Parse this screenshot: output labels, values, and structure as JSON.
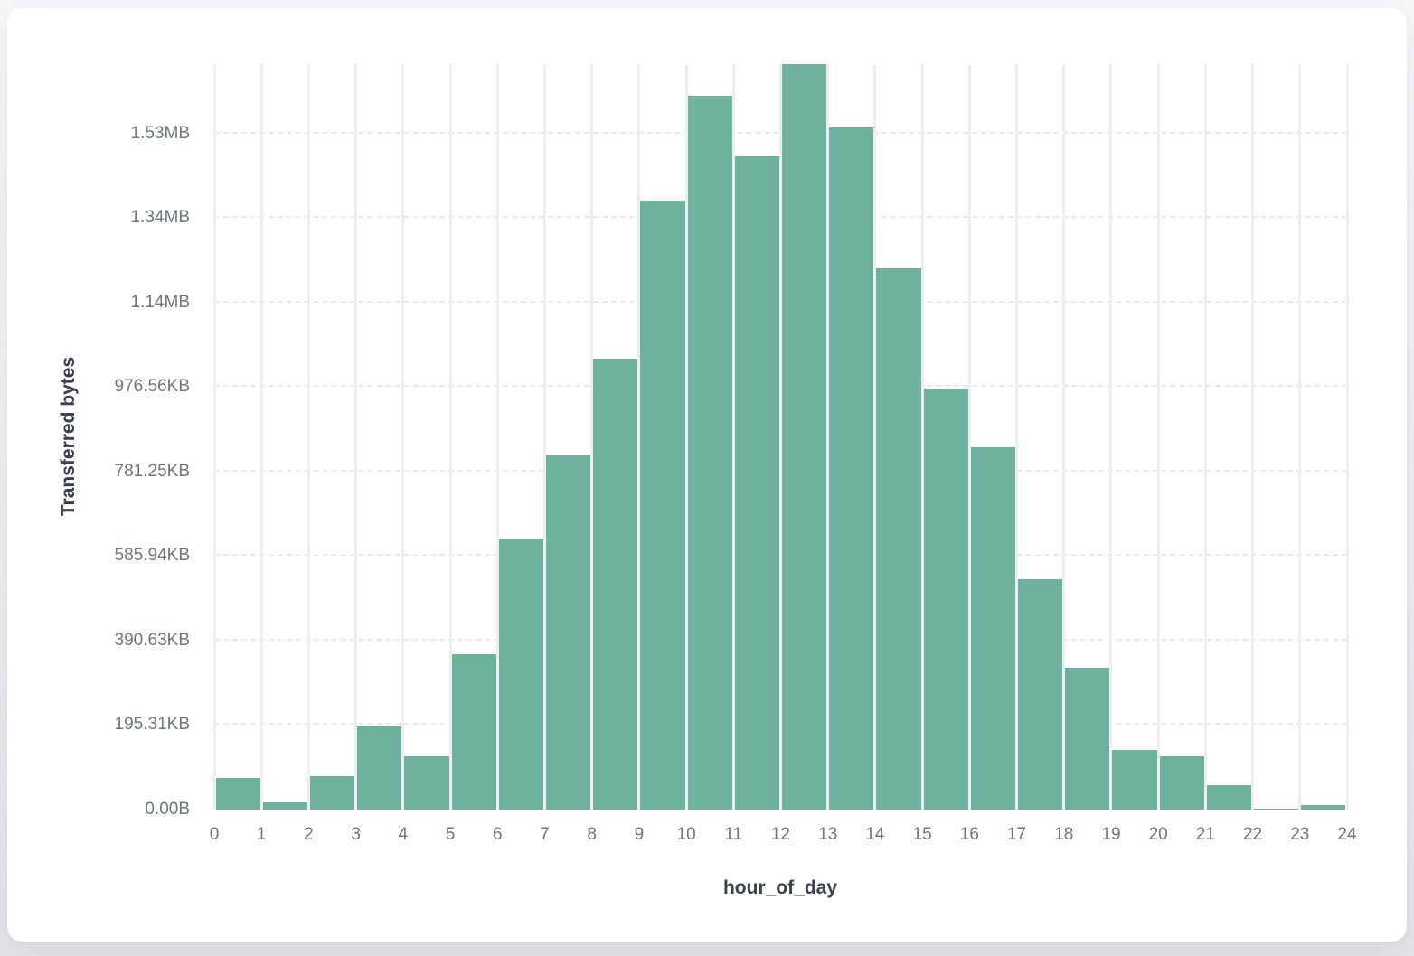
{
  "page": {
    "background_top": "#f6f7f9",
    "background_bottom": "#e3e5e9",
    "card_background": "#ffffff"
  },
  "chart_data": {
    "type": "bar",
    "title": "",
    "xlabel": "hour_of_day",
    "ylabel": "Transferred bytes",
    "categories": [
      0,
      1,
      2,
      3,
      4,
      5,
      6,
      7,
      8,
      9,
      10,
      11,
      12,
      13,
      14,
      15,
      16,
      17,
      18,
      19,
      20,
      21,
      22,
      23
    ],
    "values_bytes": [
      75000,
      16500,
      78500,
      197000,
      126000,
      367000,
      642000,
      839000,
      1068000,
      1442000,
      1690000,
      1545000,
      1764000,
      1614000,
      1280000,
      997000,
      858000,
      546000,
      335000,
      141000,
      126000,
      58000,
      3000,
      11000
    ],
    "ylim": [
      0,
      1764000
    ],
    "y_ticks": [
      {
        "label": "0.00B",
        "bytes": 0
      },
      {
        "label": "195.31KB",
        "bytes": 200000
      },
      {
        "label": "390.63KB",
        "bytes": 400000
      },
      {
        "label": "585.94KB",
        "bytes": 600000
      },
      {
        "label": "781.25KB",
        "bytes": 800000
      },
      {
        "label": "976.56KB",
        "bytes": 1000000
      },
      {
        "label": "1.14MB",
        "bytes": 1200000
      },
      {
        "label": "1.34MB",
        "bytes": 1400000
      },
      {
        "label": "1.53MB",
        "bytes": 1600000
      }
    ],
    "x_tick_labels": [
      "0",
      "1",
      "2",
      "3",
      "4",
      "5",
      "6",
      "7",
      "8",
      "9",
      "10",
      "11",
      "12",
      "13",
      "14",
      "15",
      "16",
      "17",
      "18",
      "19",
      "20",
      "21",
      "22",
      "23",
      "24"
    ],
    "bar_color": "#6eb19d",
    "vertical_gridline_color": "#ededf2",
    "horizontal_gridline_color": "#e8eaf0",
    "grid": {
      "vertical": "solid",
      "horizontal": "dashed"
    },
    "legend": "none"
  }
}
